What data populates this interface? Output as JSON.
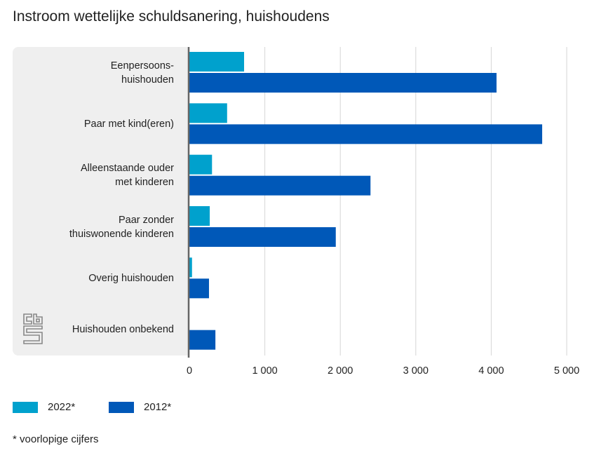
{
  "chart_data": {
    "type": "bar",
    "orientation": "horizontal",
    "title": "Instroom wettelijke schuldsanering, huishoudens",
    "categories": [
      "Eenpersoons-\nhuishouden",
      "Paar met kind(eren)",
      "Alleenstaande ouder\nmet kinderen",
      "Paar zonder\nthuiswonende kinderen",
      "Overig huishouden",
      "Huishouden onbekend"
    ],
    "series": [
      {
        "name": "2022*",
        "color": "#00a1cd",
        "values": [
          725,
          500,
          300,
          270,
          35,
          0
        ]
      },
      {
        "name": "2012*",
        "color": "#0058b8",
        "values": [
          4070,
          4675,
          2400,
          1940,
          260,
          345
        ]
      }
    ],
    "xlim": [
      0,
      5000
    ],
    "xticks": [
      "0",
      "1 000",
      "2 000",
      "3 000",
      "4 000",
      "5 000"
    ],
    "grid": true,
    "legend": "bottom-left",
    "note": "* voorlopige cijfers"
  }
}
